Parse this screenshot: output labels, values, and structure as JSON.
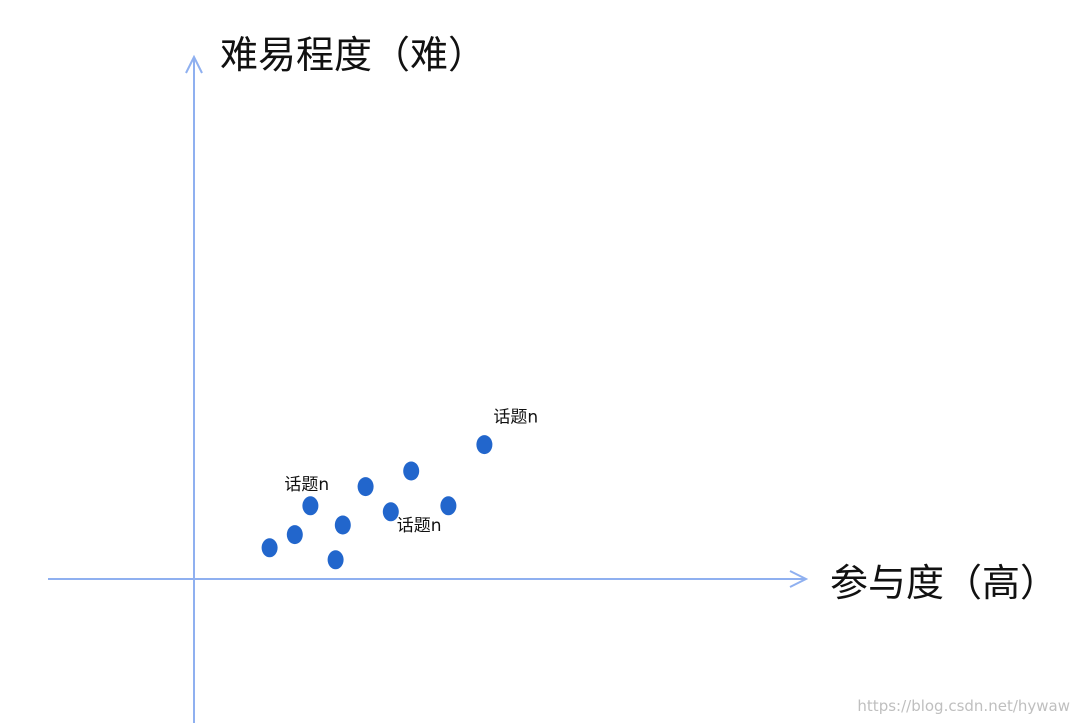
{
  "chart_data": {
    "type": "scatter",
    "title": "",
    "xlabel": "参与度（高）",
    "ylabel": "难易程度（难）",
    "grid": false,
    "legend": "none",
    "colors": {
      "axis": "#8fb0f0",
      "point": "#2266cc"
    },
    "points": [
      {
        "x": 6.3,
        "y": 2.6,
        "label": ""
      },
      {
        "x": 8.4,
        "y": 3.7,
        "label": ""
      },
      {
        "x": 11.8,
        "y": 1.6,
        "label": ""
      },
      {
        "x": 12.4,
        "y": 4.5,
        "label": ""
      },
      {
        "x": 9.7,
        "y": 6.1,
        "label": "话题n"
      },
      {
        "x": 14.3,
        "y": 7.7,
        "label": ""
      },
      {
        "x": 16.4,
        "y": 5.6,
        "label": "话题n"
      },
      {
        "x": 18.1,
        "y": 9.0,
        "label": ""
      },
      {
        "x": 21.2,
        "y": 6.1,
        "label": ""
      },
      {
        "x": 24.2,
        "y": 11.2,
        "label": "话题n"
      }
    ]
  },
  "watermark": "https://blog.csdn.net/hywaw"
}
